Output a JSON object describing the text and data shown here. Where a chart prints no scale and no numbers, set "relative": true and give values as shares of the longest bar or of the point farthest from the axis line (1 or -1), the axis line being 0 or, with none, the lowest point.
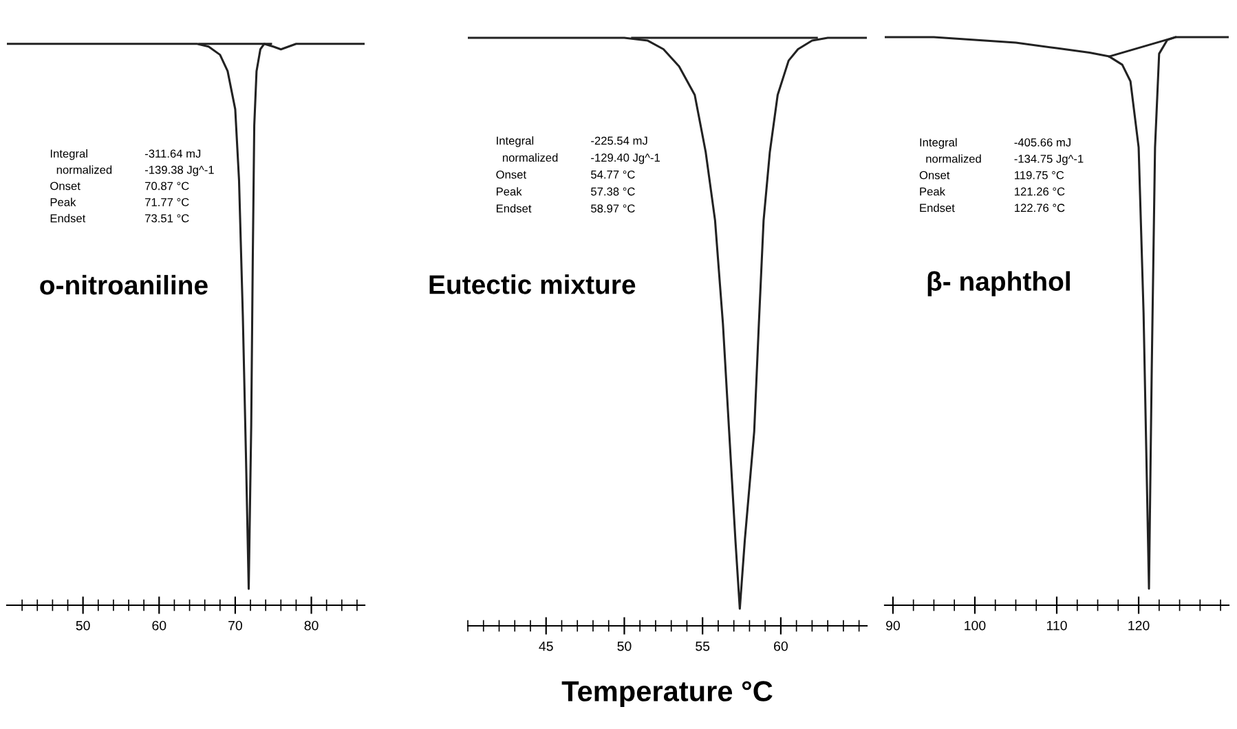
{
  "chart_data": [
    {
      "type": "line",
      "relative": true,
      "xlim": [
        40,
        87
      ],
      "xticks": [
        50,
        {
          "value": 42,
          "label": null
        },
        {
          "value": 44,
          "label": null
        },
        {
          "value": 46,
          "label": null
        },
        {
          "value": 48,
          "label": null
        },
        {
          "value": 52,
          "label": null
        },
        {
          "value": 54,
          "label": null
        },
        {
          "value": 56,
          "label": null
        },
        {
          "value": 58,
          "label": null
        },
        60,
        {
          "value": 62,
          "label": null
        },
        {
          "value": 64,
          "label": null
        },
        {
          "value": 66,
          "label": null
        },
        {
          "value": 68,
          "label": null
        },
        70,
        {
          "value": 72,
          "label": null
        },
        {
          "value": 74,
          "label": null
        },
        {
          "value": 76,
          "label": null
        },
        {
          "value": 78,
          "label": null
        },
        80,
        {
          "value": 82,
          "label": null
        },
        {
          "value": 84,
          "label": null
        },
        {
          "value": 86,
          "label": null
        }
      ],
      "series": [
        {
          "color": "#222222",
          "x": [
            40,
            60,
            65,
            66.5,
            68,
            69,
            70,
            70.5,
            71,
            71.4,
            71.77,
            72.1,
            72.3,
            72.5,
            72.8,
            73.3,
            73.8,
            75,
            76,
            77,
            78,
            87
          ],
          "values": [
            1,
            1,
            1,
            0.995,
            0.98,
            0.95,
            0.88,
            0.75,
            0.5,
            0.25,
            0,
            0.3,
            0.6,
            0.85,
            0.95,
            0.99,
            1,
            0.995,
            0.99,
            0.995,
            1,
            1
          ]
        },
        {
          "color": "#222222",
          "x": [
            65.3,
            74.7
          ],
          "values": [
            1,
            1
          ]
        }
      ],
      "annotations": [
        "o-nitroaniline",
        "Integral",
        "-311.64 mJ",
        "  normalized",
        "-139.38 Jg^-1",
        "Onset",
        "70.87 °C",
        "Peak",
        "71.77 °C",
        "Endset",
        "73.51 °C"
      ]
    },
    {
      "type": "line",
      "relative": true,
      "xlim": [
        40,
        65.5
      ],
      "xlabel": "Temperature °C",
      "xticks": [
        {
          "value": 40,
          "label": null
        },
        {
          "value": 41,
          "label": null
        },
        {
          "value": 42,
          "label": null
        },
        {
          "value": 43,
          "label": null
        },
        {
          "value": 44,
          "label": null
        },
        45,
        {
          "value": 46,
          "label": null
        },
        {
          "value": 47,
          "label": null
        },
        {
          "value": 48,
          "label": null
        },
        {
          "value": 49,
          "label": null
        },
        50,
        {
          "value": 51,
          "label": null
        },
        {
          "value": 52,
          "label": null
        },
        {
          "value": 53,
          "label": null
        },
        {
          "value": 54,
          "label": null
        },
        55,
        {
          "value": 56,
          "label": null
        },
        {
          "value": 57,
          "label": null
        },
        {
          "value": 58,
          "label": null
        },
        {
          "value": 59,
          "label": null
        },
        60,
        {
          "value": 61,
          "label": null
        },
        {
          "value": 62,
          "label": null
        },
        {
          "value": 63,
          "label": null
        },
        {
          "value": 64,
          "label": null
        },
        {
          "value": 65,
          "label": null
        }
      ],
      "series": [
        {
          "color": "#222222",
          "x": [
            40,
            50,
            51.5,
            52.5,
            53.5,
            54.5,
            55.2,
            55.8,
            56.3,
            56.7,
            57.1,
            57.38,
            57.7,
            58.3,
            58.6,
            58.9,
            59.3,
            59.8,
            60.5,
            61.1,
            62,
            63,
            65.5
          ],
          "values": [
            1,
            1,
            0.995,
            0.98,
            0.95,
            0.9,
            0.8,
            0.68,
            0.5,
            0.31,
            0.12,
            0,
            0.12,
            0.31,
            0.5,
            0.68,
            0.8,
            0.9,
            0.96,
            0.98,
            0.995,
            1,
            1
          ]
        },
        {
          "color": "#222222",
          "x": [
            50.5,
            62.3
          ],
          "values": [
            1,
            1
          ]
        }
      ],
      "annotations": [
        "Eutectic mixture",
        "Integral",
        "-225.54 mJ",
        "  normalized",
        "-129.40 Jg^-1",
        "Onset",
        "54.77 °C",
        "Peak",
        "57.38 °C",
        "Endset",
        "58.97 °C"
      ]
    },
    {
      "type": "line",
      "relative": true,
      "xlim": [
        89,
        131
      ],
      "xticks": [
        90,
        {
          "value": 92.5,
          "label": null
        },
        {
          "value": 95,
          "label": null
        },
        {
          "value": 97.5,
          "label": null
        },
        100,
        {
          "value": 102.5,
          "label": null
        },
        {
          "value": 105,
          "label": null
        },
        {
          "value": 107.5,
          "label": null
        },
        110,
        {
          "value": 112.5,
          "label": null
        },
        {
          "value": 115,
          "label": null
        },
        {
          "value": 117.5,
          "label": null
        },
        120,
        {
          "value": 122.5,
          "label": null
        },
        {
          "value": 125,
          "label": null
        },
        {
          "value": 127.5,
          "label": null
        },
        {
          "value": 130,
          "label": null
        }
      ],
      "series": [
        {
          "color": "#222222",
          "x": [
            89,
            95,
            100,
            105,
            110,
            114,
            116.4,
            118,
            119,
            120,
            120.6,
            121.26,
            121.6,
            122,
            122.5,
            123.5,
            124.5,
            131
          ],
          "values": [
            1,
            1,
            0.995,
            0.99,
            0.98,
            0.972,
            0.965,
            0.95,
            0.92,
            0.8,
            0.5,
            0,
            0.4,
            0.8,
            0.97,
            0.995,
            1,
            1
          ]
        },
        {
          "color": "#222222",
          "x": [
            116.4,
            124.5
          ],
          "values": [
            0.965,
            1
          ]
        }
      ],
      "annotations": [
        "β- naphthol",
        "Integral",
        "-405.66 mJ",
        "  normalized",
        "-134.75 Jg^-1",
        "Onset",
        "119.75 °C",
        "Peak",
        "121.26 °C",
        "Endset",
        "122.76 °C"
      ]
    }
  ]
}
